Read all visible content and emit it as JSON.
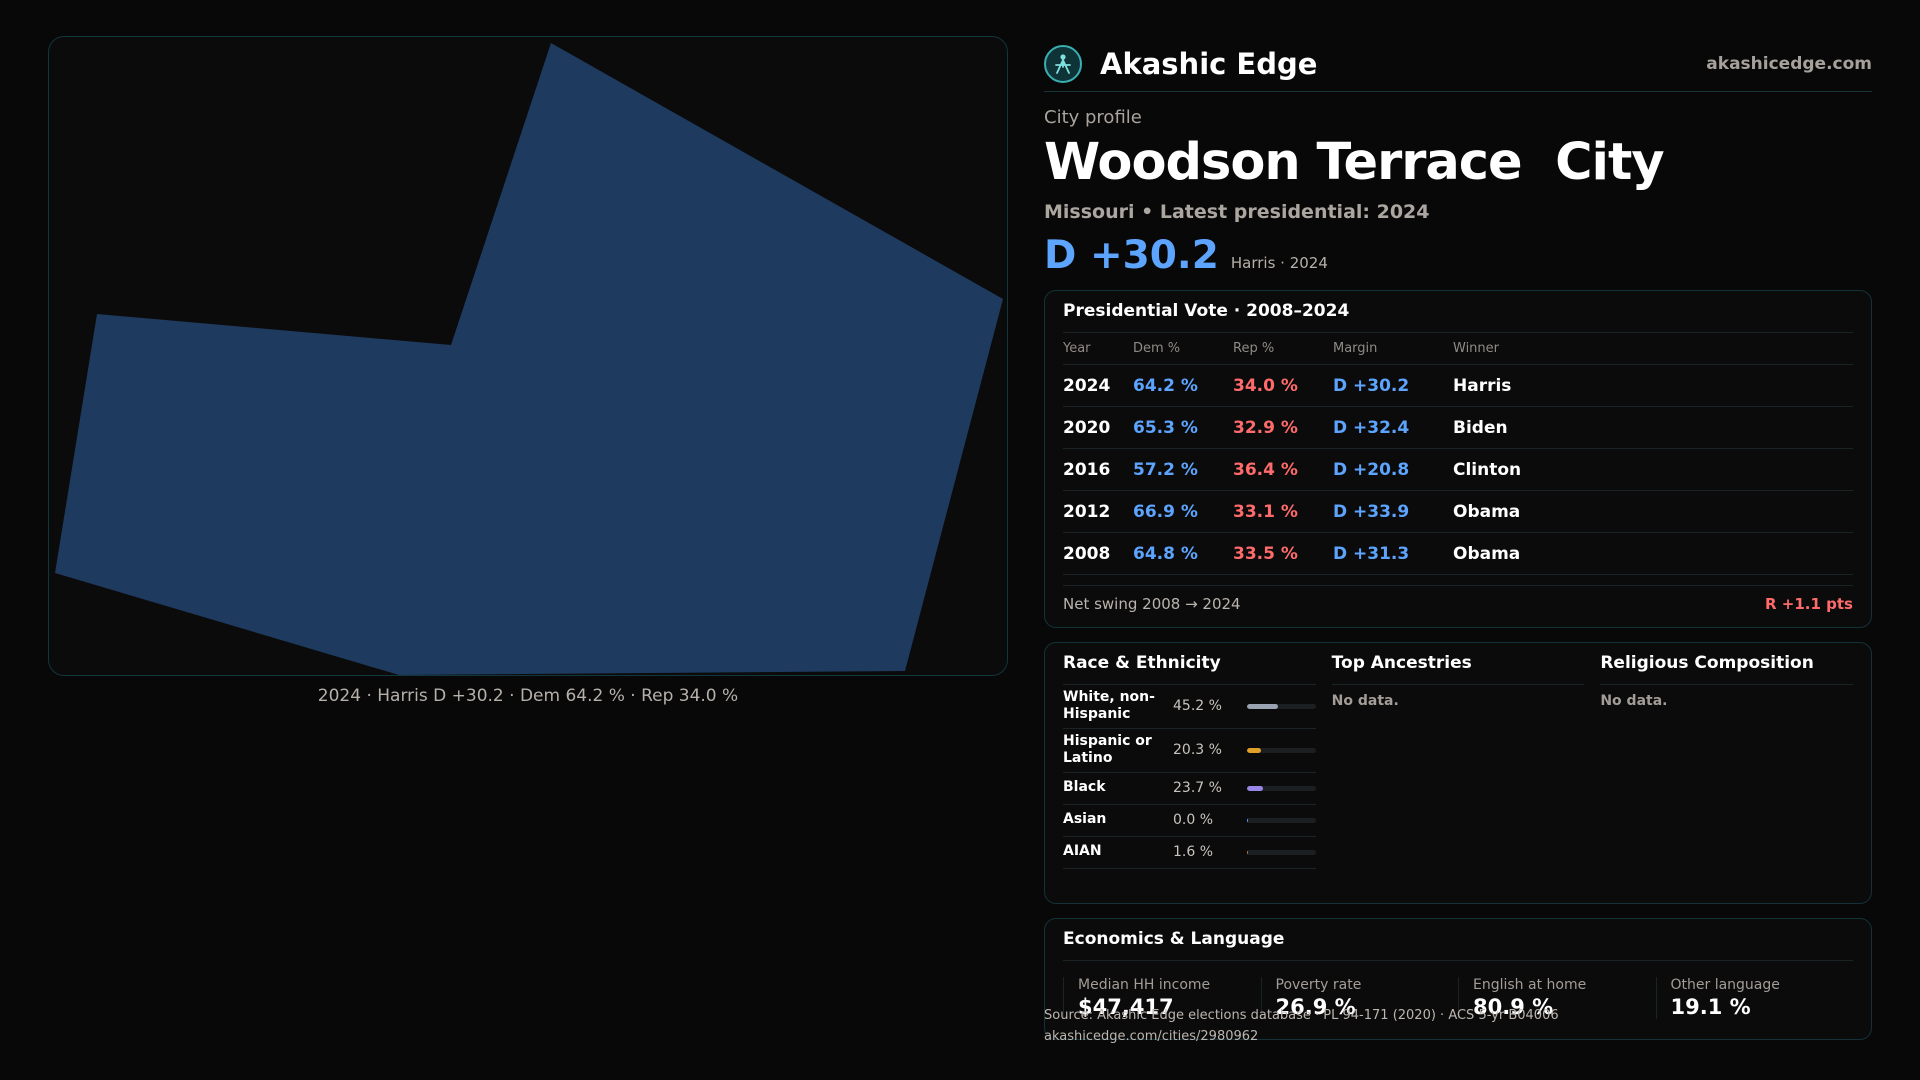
{
  "map": {
    "fill": "#1e3a5f",
    "caption": "2024 · Harris D +30.2 · Dem 64.2 % · Rep 34.0 %"
  },
  "header": {
    "brand": "Akashic Edge",
    "domain": "akashicedge.com",
    "logo_icon": "compass-person-icon"
  },
  "profile": {
    "kicker": "City profile",
    "title": "Woodson Terrace  City",
    "subtitle": "Missouri • Latest presidential: 2024",
    "margin": "D +30.2",
    "margin_note": "Harris · 2024"
  },
  "presidential": {
    "title": "Presidential Vote · 2008–2024",
    "columns": [
      "Year",
      "Dem %",
      "Rep %",
      "Margin",
      "Winner"
    ],
    "rows": [
      {
        "year": "2024",
        "dem": "64.2 %",
        "rep": "34.0 %",
        "margin": "D +30.2",
        "winner": "Harris"
      },
      {
        "year": "2020",
        "dem": "65.3 %",
        "rep": "32.9 %",
        "margin": "D +32.4",
        "winner": "Biden"
      },
      {
        "year": "2016",
        "dem": "57.2 %",
        "rep": "36.4 %",
        "margin": "D +20.8",
        "winner": "Clinton"
      },
      {
        "year": "2012",
        "dem": "66.9 %",
        "rep": "33.1 %",
        "margin": "D +33.9",
        "winner": "Obama"
      },
      {
        "year": "2008",
        "dem": "64.8 %",
        "rep": "33.5 %",
        "margin": "D +31.3",
        "winner": "Obama"
      }
    ],
    "swing_label": "Net swing 2008 → 2024",
    "swing_value": "R +1.1 pts"
  },
  "race": {
    "title": "Race & Ethnicity",
    "rows": [
      {
        "label": "White, non-Hispanic",
        "pct": "45.2 %",
        "value": 45.2,
        "color": "#9aa3b2"
      },
      {
        "label": "Hispanic or Latino",
        "pct": "20.3 %",
        "value": 20.3,
        "color": "#e0a02a"
      },
      {
        "label": "Black",
        "pct": "23.7 %",
        "value": 23.7,
        "color": "#9a86e8"
      },
      {
        "label": "Asian",
        "pct": "0.0 %",
        "value": 0.0,
        "color": "#5da4ff"
      },
      {
        "label": "AIAN",
        "pct": "1.6 %",
        "value": 1.6,
        "color": "#c07a3a"
      }
    ]
  },
  "ancestries": {
    "title": "Top Ancestries",
    "empty": "No data."
  },
  "religion": {
    "title": "Religious Composition",
    "empty": "No data."
  },
  "economics": {
    "title": "Economics & Language",
    "items": [
      {
        "label": "Median HH income",
        "value": "$47,417"
      },
      {
        "label": "Poverty rate",
        "value": "26.9 %"
      },
      {
        "label": "English at home",
        "value": "80.9 %"
      },
      {
        "label": "Other language",
        "value": "19.1 %"
      }
    ]
  },
  "footer": {
    "source": "Source: Akashic Edge elections database · PL 94-171 (2020) · ACS 5-yr B04006",
    "url": "akashicedge.com/cities/2980962"
  }
}
